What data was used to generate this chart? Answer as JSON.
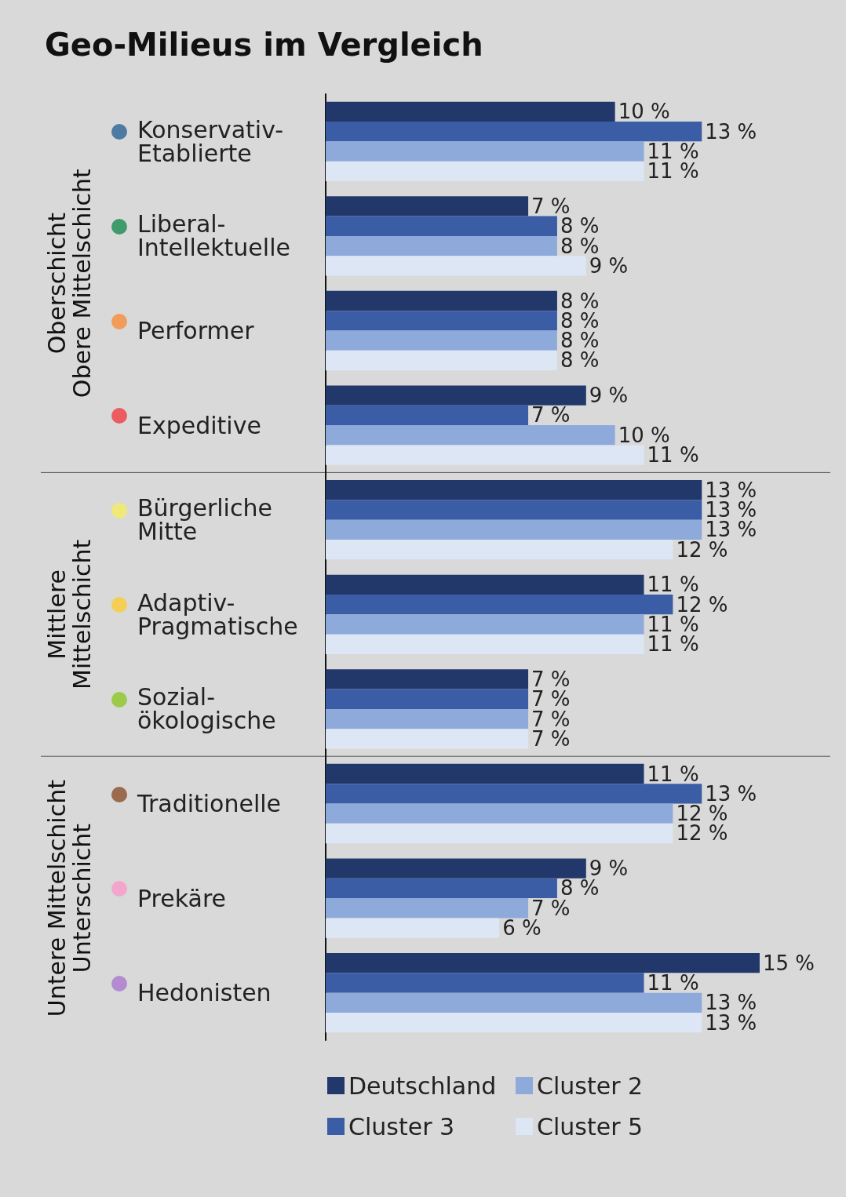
{
  "chart_data": {
    "type": "bar",
    "orientation": "horizontal",
    "title": "Geo-Milieus im Vergleich",
    "categories": [
      "Konservativ-Etablierte",
      "Liberal-Intellektuelle",
      "Performer",
      "Expeditive",
      "Bürgerliche Mitte",
      "Adaptiv-Pragmatische",
      "Sozial-ökologische",
      "Traditionelle",
      "Prekäre",
      "Hedonisten"
    ],
    "series": [
      {
        "name": "Deutschland",
        "color": "#22386a",
        "values": [
          10,
          7,
          8,
          9,
          13,
          11,
          7,
          11,
          9,
          15
        ],
        "value_labels": [
          "10 %",
          "7 %",
          "8 %",
          "9 %",
          "13 %",
          "11 %",
          "7 %",
          "11 %",
          "9 %",
          "15 %"
        ]
      },
      {
        "name": "Cluster 3",
        "color": "#3a5da5",
        "values": [
          13,
          8,
          8,
          7,
          13,
          12,
          7,
          13,
          8,
          11
        ],
        "value_labels": [
          "13 %",
          "8 %",
          "8 %",
          "7 %",
          "13 %",
          "12 %",
          "7 %",
          "13 %",
          "8 %",
          "11 %"
        ]
      },
      {
        "name": "Cluster 2",
        "color": "#8eaadb",
        "values": [
          11,
          8,
          8,
          10,
          13,
          11,
          7,
          12,
          7,
          13
        ],
        "value_labels": [
          "11 %",
          "8 %",
          "8 %",
          "10 %",
          "13 %",
          "11 %",
          "7 %",
          "12 %",
          "7 %",
          "13 %"
        ]
      },
      {
        "name": "Cluster 5",
        "color": "#dde6f4",
        "values": [
          11,
          9,
          8,
          11,
          12,
          11,
          7,
          12,
          6,
          13
        ],
        "value_labels": [
          "11 %",
          "9 %",
          "8 %",
          "11 %",
          "12 %",
          "11 %",
          "7 %",
          "12 %",
          "6 %",
          "13 %"
        ]
      }
    ],
    "annotations": [
      "Oberschicht\nObere Mittelschicht",
      "Mittlere\nMittelschicht",
      "Untere Mittelschicht\nUnterschicht"
    ],
    "legend": "bottom"
  }
}
